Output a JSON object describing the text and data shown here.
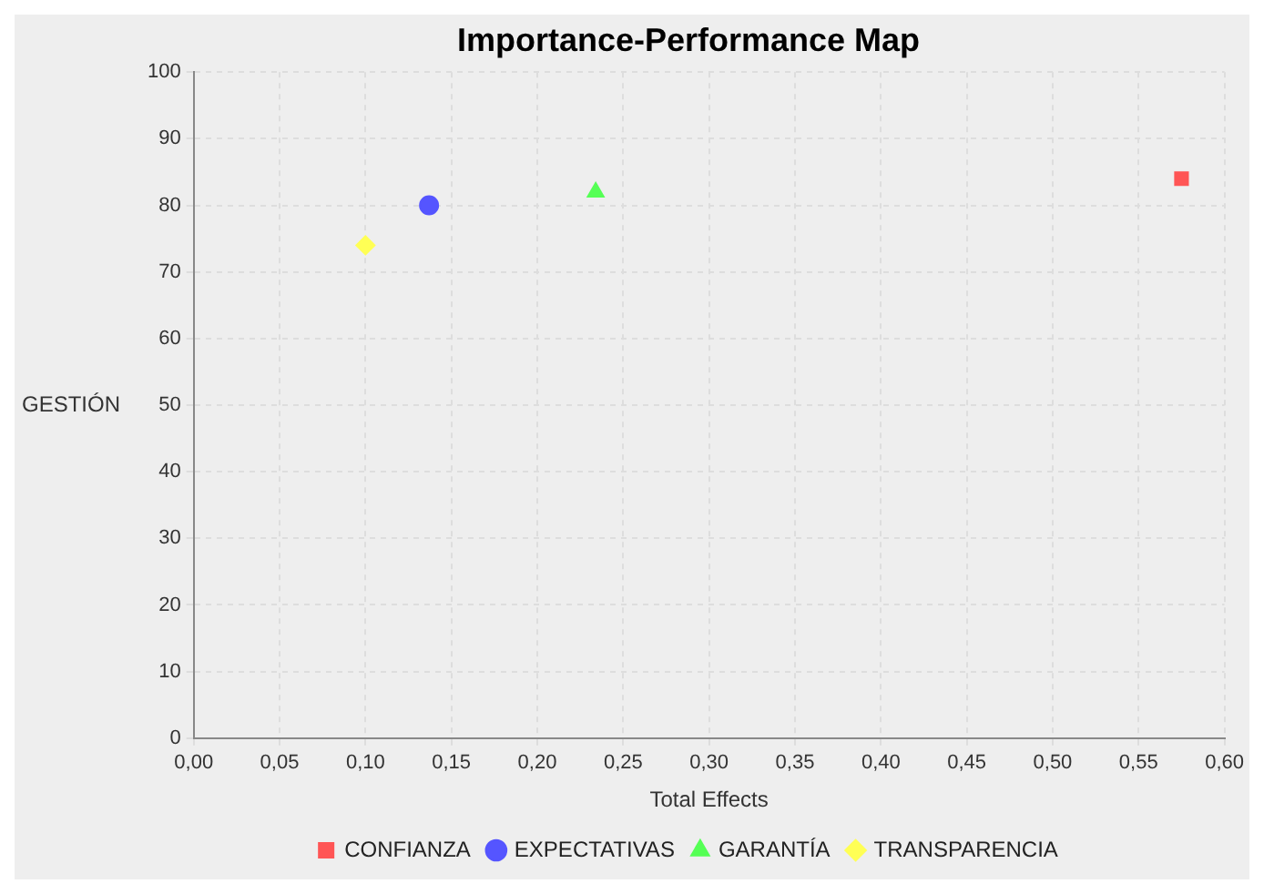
{
  "chart_data": {
    "type": "scatter",
    "title": "Importance-Performance Map",
    "xlabel": "Total Effects",
    "ylabel": "GESTIÓN",
    "xlim": [
      0,
      0.6
    ],
    "xticks": [
      {
        "value": 0,
        "label": "0,00"
      },
      {
        "value": 0.05,
        "label": "0,05"
      },
      {
        "value": 0.1,
        "label": "0,10"
      },
      {
        "value": 0.15,
        "label": "0,15"
      },
      {
        "value": 0.2,
        "label": "0,20"
      },
      {
        "value": 0.25,
        "label": "0,25"
      },
      {
        "value": 0.3,
        "label": "0,30"
      },
      {
        "value": 0.35,
        "label": "0,35"
      },
      {
        "value": 0.4,
        "label": "0,40"
      },
      {
        "value": 0.45,
        "label": "0,45"
      },
      {
        "value": 0.5,
        "label": "0,50"
      },
      {
        "value": 0.55,
        "label": "0,55"
      },
      {
        "value": 0.6,
        "label": "0,60"
      }
    ],
    "ylim": [
      0,
      100
    ],
    "yticks": [
      0,
      10,
      20,
      30,
      40,
      50,
      60,
      70,
      80,
      90,
      100
    ],
    "grid": true,
    "legend": "bottom",
    "series": [
      {
        "name": "CONFIANZA",
        "color": "#ff5555",
        "marker": "square",
        "x": [
          0.575
        ],
        "values": [
          84
        ]
      },
      {
        "name": "EXPECTATIVAS",
        "color": "#5555ff",
        "marker": "circle",
        "x": [
          0.137
        ],
        "values": [
          80
        ]
      },
      {
        "name": "GARANTÍA",
        "color": "#55ff55",
        "marker": "triangle",
        "x": [
          0.234
        ],
        "values": [
          82
        ]
      },
      {
        "name": "TRANSPARENCIA",
        "color": "#ffff55",
        "marker": "diamond",
        "x": [
          0.1
        ],
        "values": [
          74
        ]
      }
    ]
  }
}
